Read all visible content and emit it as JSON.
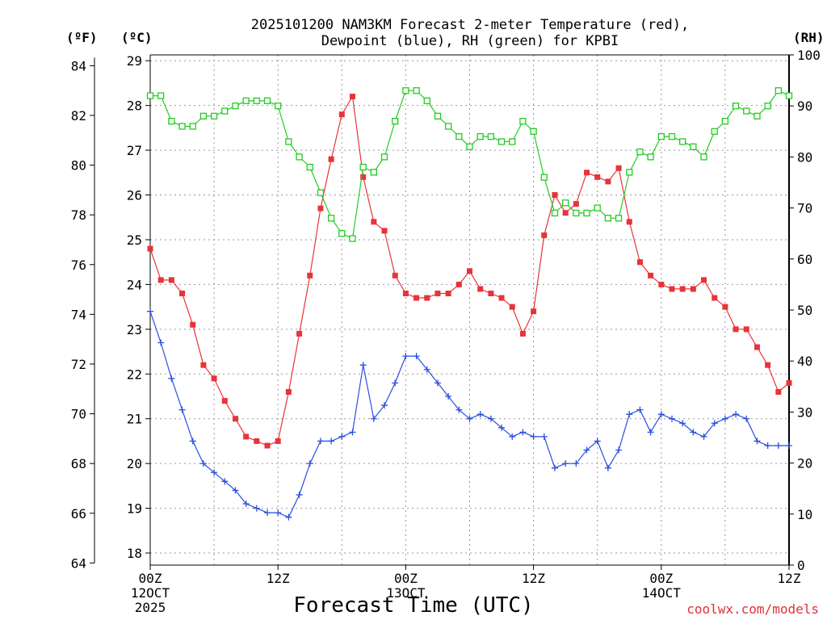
{
  "chart_data": {
    "type": "line",
    "title": "2025101200 NAM3KM Forecast 2-meter Temperature (red),",
    "subtitle": "Dewpoint (blue), RH (green) for KPBI",
    "xlabel": "Forecast Time (UTC)",
    "units": {
      "left_outer": "(ºF)",
      "left_inner": "(ºC)",
      "right": "(RH)"
    },
    "credit": "coolwx.com/models",
    "x_range": [
      0,
      60
    ],
    "x_ticks": [
      {
        "hour": 0,
        "lines": [
          "00Z",
          "12OCT",
          "2025"
        ]
      },
      {
        "hour": 12,
        "lines": [
          "12Z"
        ]
      },
      {
        "hour": 24,
        "lines": [
          "00Z",
          "13OCT"
        ]
      },
      {
        "hour": 36,
        "lines": [
          "12Z"
        ]
      },
      {
        "hour": 48,
        "lines": [
          "00Z",
          "14OCT"
        ]
      },
      {
        "hour": 60,
        "lines": [
          "12Z"
        ]
      }
    ],
    "y_celsius": {
      "range": [
        17.73,
        29.13
      ],
      "ticks": [
        "18",
        "19",
        "20",
        "21",
        "22",
        "23",
        "24",
        "25",
        "26",
        "27",
        "28",
        "29"
      ]
    },
    "y_fahrenheit": {
      "ticks": [
        "64",
        "66",
        "68",
        "70",
        "72",
        "74",
        "76",
        "78",
        "80",
        "82",
        "84"
      ]
    },
    "y_rh": {
      "range": [
        0,
        100
      ],
      "ticks": [
        "0",
        "10",
        "20",
        "30",
        "40",
        "50",
        "60",
        "70",
        "80",
        "90",
        "100"
      ]
    },
    "hours": [
      0,
      1,
      2,
      3,
      4,
      5,
      6,
      7,
      8,
      9,
      10,
      11,
      12,
      13,
      14,
      15,
      16,
      17,
      18,
      19,
      20,
      21,
      22,
      23,
      24,
      25,
      26,
      27,
      28,
      29,
      30,
      31,
      32,
      33,
      34,
      35,
      36,
      37,
      38,
      39,
      40,
      41,
      42,
      43,
      44,
      45,
      46,
      47,
      48,
      49,
      50,
      51,
      52,
      53,
      54,
      55,
      56,
      57,
      58,
      59,
      60
    ],
    "series": [
      {
        "name": "2-meter Temperature",
        "color": "#e8333a",
        "axis": "celsius",
        "marker": "filled-square",
        "values": [
          24.8,
          24.1,
          24.1,
          23.8,
          23.1,
          22.2,
          21.9,
          21.4,
          21.0,
          20.6,
          20.5,
          20.4,
          20.5,
          21.6,
          22.9,
          24.2,
          25.7,
          26.8,
          27.8,
          28.2,
          26.4,
          25.4,
          25.2,
          24.2,
          23.8,
          23.7,
          23.7,
          23.8,
          23.8,
          24.0,
          24.3,
          23.9,
          23.8,
          23.7,
          23.5,
          22.9,
          23.4,
          25.1,
          26.0,
          25.6,
          25.8,
          26.5,
          26.4,
          26.3,
          26.6,
          25.4,
          24.5,
          24.2,
          24.0,
          23.9,
          23.9,
          23.9,
          24.1,
          23.7,
          23.5,
          23.0,
          23.0,
          22.6,
          22.2,
          21.6,
          21.8
        ]
      },
      {
        "name": "Dewpoint",
        "color": "#2a4fdd",
        "axis": "celsius",
        "marker": "plus",
        "values": [
          23.4,
          22.7,
          21.9,
          21.2,
          20.5,
          20.0,
          19.8,
          19.6,
          19.4,
          19.1,
          19.0,
          18.9,
          18.9,
          18.8,
          19.3,
          20.0,
          20.5,
          20.5,
          20.6,
          20.7,
          22.2,
          21.0,
          21.3,
          21.8,
          22.4,
          22.4,
          22.1,
          21.8,
          21.5,
          21.2,
          21.0,
          21.1,
          21.0,
          20.8,
          20.6,
          20.7,
          20.6,
          20.6,
          19.9,
          20.0,
          20.0,
          20.3,
          20.5,
          19.9,
          20.3,
          21.1,
          21.2,
          20.7,
          21.1,
          21.0,
          20.9,
          20.7,
          20.6,
          20.9,
          21.0,
          21.1,
          21.0,
          20.5,
          20.4,
          20.4,
          20.4
        ]
      },
      {
        "name": "RH",
        "color": "#22cc22",
        "axis": "rh",
        "marker": "open-square",
        "values": [
          92,
          92,
          87,
          86,
          86,
          88,
          88,
          89,
          90,
          91,
          91,
          91,
          90,
          83,
          80,
          78,
          73,
          68,
          65,
          64,
          78,
          77,
          80,
          87,
          93,
          93,
          91,
          88,
          86,
          84,
          82,
          84,
          84,
          83,
          83,
          87,
          85,
          76,
          69,
          71,
          69,
          69,
          70,
          68,
          68,
          77,
          81,
          80,
          84,
          84,
          83,
          82,
          80,
          85,
          87,
          90,
          89,
          88,
          90,
          93,
          92
        ]
      }
    ]
  }
}
